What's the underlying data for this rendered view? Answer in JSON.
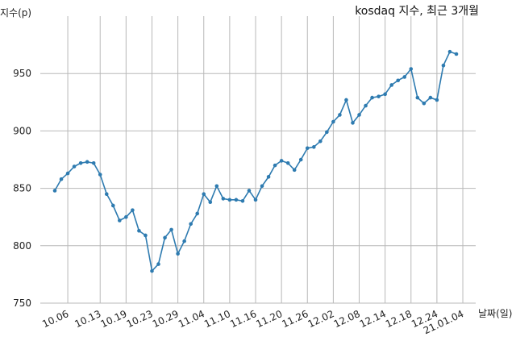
{
  "chart_data": {
    "type": "line",
    "title": "kosdaq 지수, 최근 3개월",
    "xlabel": "날짜(일)",
    "ylabel": "지수(p)",
    "ylim": [
      750,
      1000
    ],
    "yticks": [
      750,
      800,
      850,
      900,
      950
    ],
    "grid": true,
    "colors": {
      "line": "#2e7bb0",
      "point": "#2e7bb0",
      "grid": "#b8b8b8"
    },
    "xtick_labels": [
      "10.06",
      "10.13",
      "10.19",
      "10.23",
      "10.29",
      "11.04",
      "11.10",
      "11.16",
      "11.20",
      "11.26",
      "12.02",
      "12.08",
      "12.14",
      "12.18",
      "12.24",
      "21.01.04"
    ],
    "xtick_index": [
      2,
      7,
      11,
      15,
      19,
      23,
      27,
      31,
      35,
      39,
      43,
      47,
      51,
      55,
      59,
      63
    ],
    "series": [
      {
        "values": [
          848,
          858,
          863,
          869,
          872,
          873,
          872,
          862,
          845,
          835,
          822,
          825,
          831,
          813,
          809,
          778,
          784,
          807,
          814,
          793,
          804,
          819,
          828,
          845,
          838,
          852,
          841,
          840,
          840,
          839,
          848,
          840,
          852,
          860,
          870,
          874,
          872,
          866,
          875,
          885,
          886,
          891,
          899,
          908,
          914,
          927,
          907,
          914,
          922,
          929,
          930,
          932,
          940,
          944,
          947,
          954,
          929,
          924,
          929,
          927,
          957,
          969,
          967
        ]
      }
    ]
  }
}
